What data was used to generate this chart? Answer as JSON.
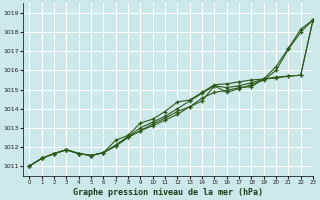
{
  "xlabel": "Graphe pression niveau de la mer (hPa)",
  "bg_color": "#cde8e8",
  "grid_color": "#b8d8d8",
  "line_color": "#2d5a1b",
  "xlim": [
    -0.5,
    23
  ],
  "ylim": [
    1010.5,
    1019.5
  ],
  "xticks": [
    0,
    1,
    2,
    3,
    4,
    5,
    6,
    7,
    8,
    9,
    10,
    11,
    12,
    13,
    14,
    15,
    16,
    17,
    18,
    19,
    20,
    21,
    22,
    23
  ],
  "yticks": [
    1011,
    1012,
    1013,
    1014,
    1015,
    1016,
    1017,
    1018,
    1019
  ],
  "series": [
    [
      1011.0,
      1011.4,
      1011.65,
      1011.85,
      1011.65,
      1011.55,
      1011.7,
      1012.05,
      1012.5,
      1012.85,
      1013.2,
      1013.5,
      1013.85,
      1014.1,
      1014.4,
      1015.2,
      1014.85,
      1015.05,
      1015.25,
      1015.5,
      1016.0,
      1017.1,
      1018.0,
      1018.65
    ],
    [
      1011.0,
      1011.4,
      1011.65,
      1011.85,
      1011.65,
      1011.55,
      1011.7,
      1012.35,
      1012.6,
      1013.25,
      1013.45,
      1013.85,
      1014.35,
      1014.45,
      1014.85,
      1015.25,
      1015.3,
      1015.4,
      1015.5,
      1015.55,
      1015.65,
      1015.7,
      1015.75,
      1018.65
    ],
    [
      1011.0,
      1011.4,
      1011.65,
      1011.85,
      1011.65,
      1011.55,
      1011.7,
      1012.1,
      1012.55,
      1013.0,
      1013.3,
      1013.6,
      1014.0,
      1014.4,
      1014.8,
      1015.2,
      1015.1,
      1015.2,
      1015.35,
      1015.55,
      1016.2,
      1017.15,
      1018.15,
      1018.65
    ],
    [
      1011.0,
      1011.4,
      1011.65,
      1011.85,
      1011.65,
      1011.55,
      1011.7,
      1012.05,
      1012.5,
      1012.85,
      1013.1,
      1013.4,
      1013.7,
      1014.1,
      1014.55,
      1014.85,
      1014.95,
      1015.1,
      1015.15,
      1015.55,
      1015.6,
      1015.7,
      1015.75,
      1018.65
    ]
  ]
}
